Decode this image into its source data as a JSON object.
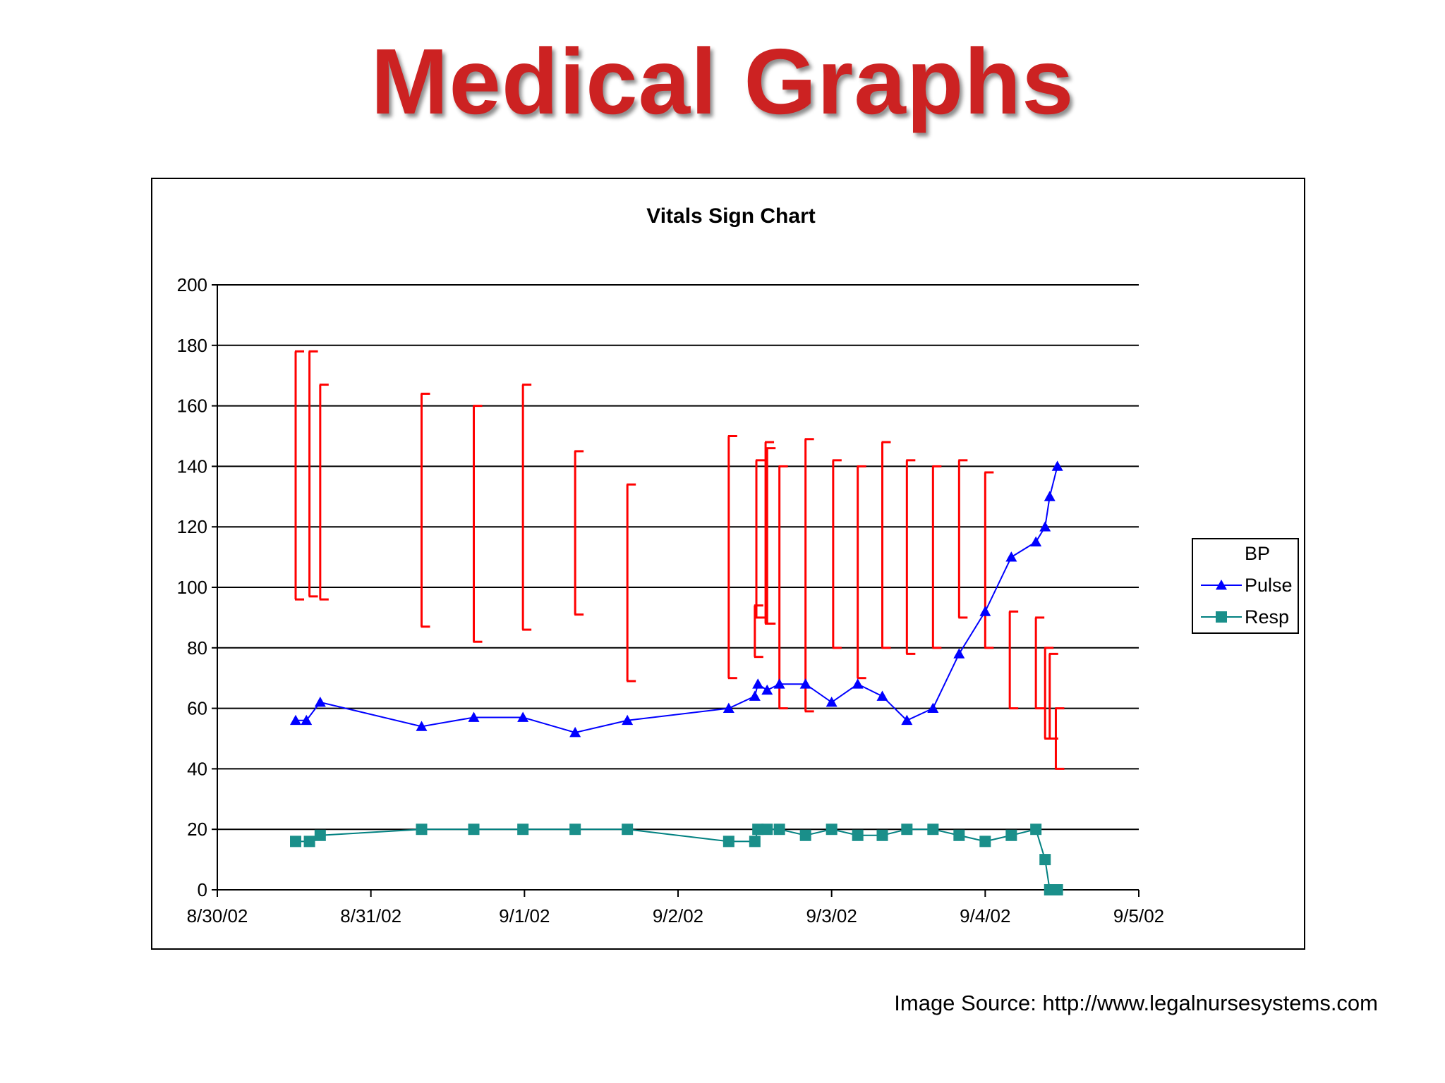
{
  "slide": {
    "title": "Medical Graphs",
    "source": "Image Source: http://www.legalnursesystems.com"
  },
  "colors": {
    "title": "#cc2222",
    "bp": "#ff0000",
    "pulse": "#0000ff",
    "resp": "#008080",
    "resp_marker": "#1a8f8a"
  },
  "chart_data": {
    "type": "line",
    "title": "Vitals Sign Chart",
    "xlabel": "",
    "ylabel": "",
    "x_tick_labels": [
      "8/30/02",
      "8/31/02",
      "9/1/02",
      "9/2/02",
      "9/3/02",
      "9/4/02",
      "9/5/02"
    ],
    "y_tick_labels": [
      "0",
      "20",
      "40",
      "60",
      "80",
      "100",
      "120",
      "140",
      "160",
      "180",
      "200"
    ],
    "xlim_days": [
      0,
      6
    ],
    "ylim": [
      0,
      200
    ],
    "grid": "horizontal",
    "legend_placement": "right",
    "series": [
      {
        "name": "BP",
        "kind": "high-low",
        "x": [
          0.51,
          0.6,
          0.67,
          1.33,
          1.67,
          1.99,
          2.33,
          2.67,
          3.33,
          3.5,
          3.51,
          3.57,
          3.58,
          3.66,
          3.83,
          4.01,
          4.17,
          4.33,
          4.49,
          4.66,
          4.83,
          5.0,
          5.16,
          5.33,
          5.39,
          5.42,
          5.46
        ],
        "high": [
          178,
          178,
          167,
          164,
          160,
          167,
          145,
          134,
          150,
          94,
          142,
          148,
          146,
          140,
          149,
          142,
          140,
          148,
          142,
          140,
          142,
          138,
          92,
          90,
          80,
          78,
          60
        ],
        "low": [
          96,
          97,
          96,
          87,
          82,
          86,
          91,
          69,
          70,
          77,
          90,
          88,
          88,
          60,
          59,
          80,
          70,
          80,
          78,
          80,
          90,
          80,
          60,
          60,
          50,
          50,
          40
        ]
      },
      {
        "name": "Pulse",
        "marker": "triangle",
        "x": [
          0.51,
          0.58,
          0.67,
          1.33,
          1.67,
          1.99,
          2.33,
          2.67,
          3.33,
          3.5,
          3.52,
          3.58,
          3.66,
          3.83,
          4.0,
          4.17,
          4.33,
          4.49,
          4.66,
          4.83,
          5.0,
          5.17,
          5.33,
          5.39,
          5.42,
          5.47
        ],
        "values": [
          56,
          56,
          62,
          54,
          57,
          57,
          52,
          56,
          60,
          64,
          68,
          66,
          68,
          68,
          62,
          68,
          64,
          56,
          60,
          78,
          92,
          110,
          115,
          120,
          130,
          140
        ]
      },
      {
        "name": "Resp",
        "marker": "square",
        "x": [
          0.51,
          0.6,
          0.67,
          1.33,
          1.67,
          1.99,
          2.33,
          2.67,
          3.33,
          3.5,
          3.52,
          3.58,
          3.66,
          3.83,
          4.0,
          4.17,
          4.33,
          4.49,
          4.66,
          4.83,
          5.0,
          5.17,
          5.33,
          5.39,
          5.42,
          5.47
        ],
        "values": [
          16,
          16,
          18,
          20,
          20,
          20,
          20,
          20,
          16,
          16,
          20,
          20,
          20,
          18,
          20,
          18,
          18,
          20,
          20,
          18,
          16,
          18,
          20,
          10,
          0,
          0
        ]
      }
    ]
  }
}
